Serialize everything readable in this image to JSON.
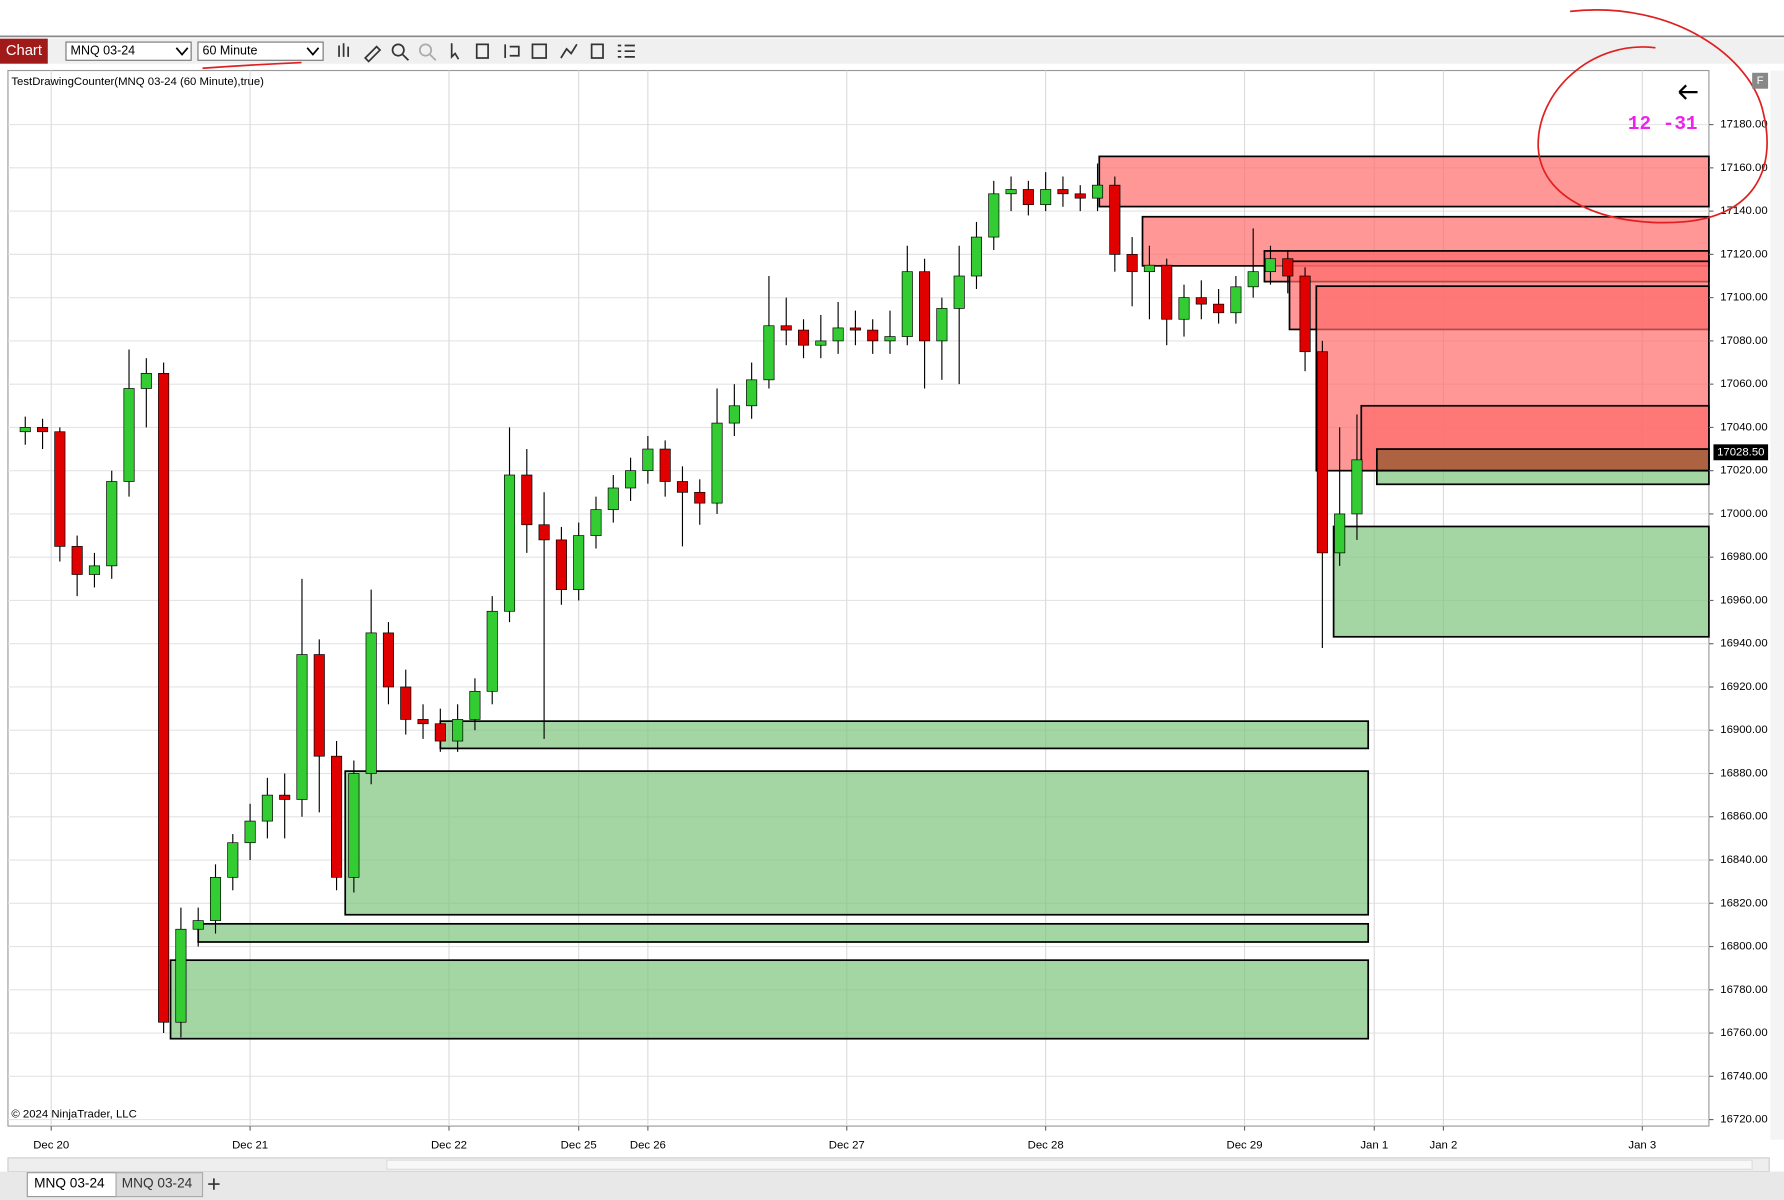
{
  "toolbar": {
    "button": "Chart",
    "instrument": "MNQ 03-24",
    "interval": "60 Minute"
  },
  "chart_data": {
    "type": "candlestick",
    "indicator_label": "TestDrawingCounter(MNQ 03-24 (60 Minute),true)",
    "annotation": "12 -31",
    "copyright": "© 2024 NinjaTrader, LLC",
    "up_color": "#33cc33",
    "down_color": "#e00000",
    "grid": true,
    "xlim": [
      -2,
      194.7
    ],
    "xticks": [
      {
        "value": 3,
        "label": "Dec 20"
      },
      {
        "value": 26,
        "label": "Dec 21"
      },
      {
        "value": 49,
        "label": "Dec 22"
      },
      {
        "value": 64,
        "label": "Dec 25"
      },
      {
        "value": 72,
        "label": "Dec 26"
      },
      {
        "value": 95,
        "label": "Dec 27"
      },
      {
        "value": 118,
        "label": "Dec 28"
      },
      {
        "value": 141,
        "label": "Dec 29"
      },
      {
        "value": 156,
        "label": "Jan 1"
      },
      {
        "value": 164,
        "label": "Jan 2"
      },
      {
        "value": 187,
        "label": "Jan 3"
      }
    ],
    "ylim": [
      16717,
      17205
    ],
    "yticks": [
      {
        "value": 17180,
        "label": "17180.00"
      },
      {
        "value": 17160,
        "label": "17160.00"
      },
      {
        "value": 17140,
        "label": "17140.00"
      },
      {
        "value": 17120,
        "label": "17120.00"
      },
      {
        "value": 17100,
        "label": "17100.00"
      },
      {
        "value": 17080,
        "label": "17080.00"
      },
      {
        "value": 17060,
        "label": "17060.00"
      },
      {
        "value": 17040,
        "label": "17040.00"
      },
      {
        "value": 17020,
        "label": "17020.00"
      },
      {
        "value": 17000,
        "label": "17000.00"
      },
      {
        "value": 16980,
        "label": "16980.00"
      },
      {
        "value": 16960,
        "label": "16960.00"
      },
      {
        "value": 16940,
        "label": "16940.00"
      },
      {
        "value": 16920,
        "label": "16920.00"
      },
      {
        "value": 16900,
        "label": "16900.00"
      },
      {
        "value": 16880,
        "label": "16880.00"
      },
      {
        "value": 16860,
        "label": "16860.00"
      },
      {
        "value": 16840,
        "label": "16840.00"
      },
      {
        "value": 16820,
        "label": "16820.00"
      },
      {
        "value": 16800,
        "label": "16800.00"
      },
      {
        "value": 16780,
        "label": "16780.00"
      },
      {
        "value": 16760,
        "label": "16760.00"
      },
      {
        "value": 16740,
        "label": "16740.00"
      },
      {
        "value": 16720,
        "label": "16720.00"
      }
    ],
    "x": [
      0,
      2,
      4,
      6,
      8,
      10,
      12,
      14,
      16,
      18,
      20,
      22,
      24,
      26,
      28,
      30,
      32,
      34,
      36,
      38,
      40,
      42,
      44,
      46,
      48,
      50,
      52,
      54,
      56,
      58,
      60,
      62,
      64,
      66,
      68,
      70,
      72,
      74,
      76,
      78,
      80,
      82,
      84,
      86,
      88,
      90,
      92,
      94,
      96,
      98,
      100,
      102,
      104,
      106,
      108,
      110,
      112,
      114,
      116,
      118,
      120,
      122,
      124,
      126,
      128,
      130,
      132,
      134,
      136,
      138,
      140,
      142,
      144,
      146,
      148,
      150,
      152,
      154
    ],
    "ohlc": [
      [
        17038,
        17045,
        17032,
        17040
      ],
      [
        17040,
        17044,
        17030,
        17038
      ],
      [
        17038,
        17040,
        16978,
        16985
      ],
      [
        16985,
        16990,
        16962,
        16972
      ],
      [
        16972,
        16982,
        16966,
        16976
      ],
      [
        16976,
        17020,
        16970,
        17015
      ],
      [
        17015,
        17076,
        17008,
        17058
      ],
      [
        17058,
        17072,
        17040,
        17065
      ],
      [
        17065,
        17070,
        16760,
        16765
      ],
      [
        16765,
        16818,
        16758,
        16808
      ],
      [
        16808,
        16818,
        16800,
        16812
      ],
      [
        16812,
        16838,
        16806,
        16832
      ],
      [
        16832,
        16852,
        16826,
        16848
      ],
      [
        16848,
        16866,
        16840,
        16858
      ],
      [
        16858,
        16878,
        16850,
        16870
      ],
      [
        16870,
        16880,
        16850,
        16868
      ],
      [
        16868,
        16970,
        16860,
        16935
      ],
      [
        16935,
        16942,
        16862,
        16888
      ],
      [
        16888,
        16895,
        16826,
        16832
      ],
      [
        16832,
        16886,
        16825,
        16880
      ],
      [
        16880,
        16965,
        16875,
        16945
      ],
      [
        16945,
        16950,
        16912,
        16920
      ],
      [
        16920,
        16928,
        16898,
        16905
      ],
      [
        16905,
        16912,
        16896,
        16903
      ],
      [
        16903,
        16910,
        16890,
        16895
      ],
      [
        16895,
        16912,
        16890,
        16905
      ],
      [
        16905,
        16924,
        16900,
        16918
      ],
      [
        16918,
        16962,
        16912,
        16955
      ],
      [
        16955,
        17040,
        16950,
        17018
      ],
      [
        17018,
        17030,
        16982,
        16995
      ],
      [
        16995,
        17010,
        16896,
        16988
      ],
      [
        16988,
        16994,
        16958,
        16965
      ],
      [
        16965,
        16996,
        16960,
        16990
      ],
      [
        16990,
        17008,
        16984,
        17002
      ],
      [
        17002,
        17018,
        16996,
        17012
      ],
      [
        17012,
        17026,
        17006,
        17020
      ],
      [
        17020,
        17036,
        17014,
        17030
      ],
      [
        17030,
        17034,
        17008,
        17015
      ],
      [
        17015,
        17022,
        16985,
        17010
      ],
      [
        17010,
        17016,
        16995,
        17005
      ],
      [
        17005,
        17058,
        17000,
        17042
      ],
      [
        17042,
        17060,
        17036,
        17050
      ],
      [
        17050,
        17070,
        17044,
        17062
      ],
      [
        17062,
        17110,
        17058,
        17087
      ],
      [
        17087,
        17100,
        17078,
        17085
      ],
      [
        17085,
        17090,
        17072,
        17078
      ],
      [
        17078,
        17092,
        17072,
        17080
      ],
      [
        17080,
        17098,
        17074,
        17086
      ],
      [
        17086,
        17094,
        17078,
        17085
      ],
      [
        17085,
        17090,
        17074,
        17080
      ],
      [
        17080,
        17094,
        17074,
        17082
      ],
      [
        17082,
        17124,
        17078,
        17112
      ],
      [
        17112,
        17118,
        17058,
        17080
      ],
      [
        17080,
        17100,
        17062,
        17095
      ],
      [
        17095,
        17124,
        17060,
        17110
      ],
      [
        17110,
        17135,
        17104,
        17128
      ],
      [
        17128,
        17154,
        17122,
        17148
      ],
      [
        17148,
        17156,
        17140,
        17150
      ],
      [
        17150,
        17154,
        17138,
        17143
      ],
      [
        17143,
        17158,
        17140,
        17150
      ],
      [
        17150,
        17156,
        17142,
        17148
      ],
      [
        17148,
        17152,
        17140,
        17146
      ],
      [
        17146,
        17162,
        17140,
        17152
      ],
      [
        17152,
        17156,
        17112,
        17120
      ],
      [
        17120,
        17128,
        17096,
        17112
      ],
      [
        17112,
        17124,
        17090,
        17115
      ],
      [
        17115,
        17118,
        17078,
        17090
      ],
      [
        17090,
        17106,
        17082,
        17100
      ],
      [
        17100,
        17108,
        17090,
        17097
      ],
      [
        17097,
        17104,
        17088,
        17093
      ],
      [
        17093,
        17110,
        17088,
        17105
      ],
      [
        17105,
        17132,
        17100,
        17112
      ],
      [
        17112,
        17124,
        17106,
        17118
      ],
      [
        17118,
        17122,
        17102,
        17110
      ],
      [
        17110,
        17114,
        17066,
        17075
      ],
      [
        17075,
        17080,
        16938,
        16982
      ],
      [
        16982,
        17040,
        16976,
        17000
      ],
      [
        17000,
        17046,
        16988,
        17025
      ]
    ],
    "zones": [
      {
        "x": [
          124.2,
          194.7
        ],
        "y": [
          17142.1,
          17165.3
        ],
        "color": "#ff6b6b"
      },
      {
        "x": [
          129.2,
          194.7
        ],
        "y": [
          17114.7,
          17137.4
        ],
        "color": "#ff6b6b"
      },
      {
        "x": [
          143.3,
          194.7
        ],
        "y": [
          17107.4,
          17121.6
        ],
        "color": "#ff6b6b"
      },
      {
        "x": [
          146.2,
          194.7
        ],
        "y": [
          17085.3,
          17116.8
        ],
        "color": "#ff6b6b"
      },
      {
        "x": [
          149.3,
          194.7
        ],
        "y": [
          17020,
          17105.3
        ],
        "color": "#ff6b6b"
      },
      {
        "x": [
          154.5,
          194.7
        ],
        "y": [
          17020,
          17050
        ],
        "color": "#ff6b6b"
      },
      {
        "x": [
          156.3,
          194.7
        ],
        "y": [
          17020,
          17030
        ],
        "color": "#8a5a2a"
      },
      {
        "x": [
          156.3,
          194.7
        ],
        "y": [
          17013.7,
          17020
        ],
        "color": "#7dc47d"
      },
      {
        "x": [
          151.3,
          194.7
        ],
        "y": [
          16943.2,
          16994.2
        ],
        "color": "#7dc47d"
      },
      {
        "x": [
          48,
          155.3
        ],
        "y": [
          16891.6,
          16904.2
        ],
        "color": "#7dc47d"
      },
      {
        "x": [
          37,
          155.3
        ],
        "y": [
          16814.7,
          16881.1
        ],
        "color": "#7dc47d"
      },
      {
        "x": [
          20,
          155.3
        ],
        "y": [
          16802.1,
          16810.5
        ],
        "color": "#7dc47d"
      },
      {
        "x": [
          16.8,
          155.3
        ],
        "y": [
          16757.4,
          16793.7
        ],
        "color": "#7dc47d"
      }
    ],
    "last_price": {
      "value": 17028.5,
      "label": "17028.50"
    }
  },
  "tabs": [
    "MNQ 03-24",
    "MNQ 03-24"
  ]
}
